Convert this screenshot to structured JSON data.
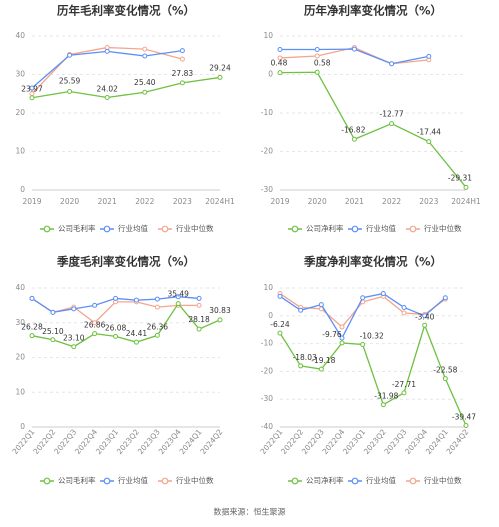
{
  "source_text": "数据来源：恒生聚源",
  "colors": {
    "company": "#6ec141",
    "industry_avg": "#5b8ff9",
    "industry_median": "#f4a58c"
  },
  "chart_data": [
    {
      "type": "line",
      "title": "历年毛利率变化情况（%）",
      "categories": [
        "2019",
        "2020",
        "2021",
        "2022",
        "2023",
        "2024H1"
      ],
      "ylim": [
        0,
        40
      ],
      "yticks": [
        0,
        10,
        20,
        30,
        40
      ],
      "grid": true,
      "legend_position": "bottom",
      "series": [
        {
          "name": "公司毛利率",
          "key": "company",
          "values": [
            23.97,
            25.59,
            24.02,
            25.4,
            27.83,
            29.24
          ],
          "labels": [
            "23.97",
            "25.59",
            "24.02",
            "25.40",
            "27.83",
            "29.24"
          ]
        },
        {
          "name": "行业均值",
          "key": "industry_avg",
          "values": [
            26.5,
            35.0,
            36.0,
            34.8,
            36.2,
            null
          ]
        },
        {
          "name": "行业中位数",
          "key": "industry_median",
          "values": [
            25.0,
            35.2,
            37.0,
            36.6,
            34.0,
            null
          ]
        }
      ]
    },
    {
      "type": "line",
      "title": "历年净利率变化情况（%）",
      "categories": [
        "2019",
        "2020",
        "2021",
        "2022",
        "2023",
        "2024H1"
      ],
      "ylim": [
        -30,
        10
      ],
      "yticks": [
        -30,
        -20,
        -10,
        0,
        10
      ],
      "grid": true,
      "legend_position": "bottom",
      "series": [
        {
          "name": "公司净利率",
          "key": "company",
          "values": [
            0.48,
            0.58,
            -16.82,
            -12.77,
            -17.44,
            -29.31
          ],
          "labels": [
            "0.48",
            "0.58",
            "-16.82",
            "-12.77",
            "-17.44",
            "-29.31"
          ]
        },
        {
          "name": "行业均值",
          "key": "industry_avg",
          "values": [
            6.5,
            6.5,
            6.6,
            2.8,
            4.7,
            null
          ]
        },
        {
          "name": "行业中位数",
          "key": "industry_median",
          "values": [
            4.3,
            4.8,
            7.0,
            2.8,
            3.8,
            null
          ]
        }
      ]
    },
    {
      "type": "line",
      "title": "季度毛利率变化情况（%）",
      "categories": [
        "2022Q1",
        "2022Q2",
        "2022Q3",
        "2022Q4",
        "2023Q1",
        "2023Q2",
        "2023Q3",
        "2023Q4",
        "2024Q1",
        "2024Q2"
      ],
      "ylim": [
        0,
        40
      ],
      "yticks": [
        0,
        10,
        20,
        30,
        40
      ],
      "grid": true,
      "legend_position": "bottom",
      "series": [
        {
          "name": "公司毛利率",
          "key": "company",
          "values": [
            26.28,
            25.1,
            23.1,
            26.86,
            26.08,
            24.41,
            26.36,
            35.49,
            28.18,
            30.83
          ],
          "labels": [
            "26.28",
            "25.10",
            "23.10",
            "26.86",
            "26.08",
            "24.41",
            "26.36",
            "35.49",
            "28.18",
            "30.83"
          ]
        },
        {
          "name": "行业均值",
          "key": "industry_avg",
          "values": [
            37.0,
            33.0,
            34.0,
            35.0,
            37.0,
            36.5,
            36.8,
            37.5,
            37.0,
            null
          ]
        },
        {
          "name": "行业中位数",
          "key": "industry_median",
          "values": [
            37.0,
            33.0,
            34.5,
            30.0,
            36.0,
            36.0,
            34.5,
            35.0,
            35.0,
            null
          ]
        }
      ]
    },
    {
      "type": "line",
      "title": "季度净利率变化情况（%）",
      "categories": [
        "2022Q1",
        "2022Q2",
        "2022Q3",
        "2022Q4",
        "2023Q1",
        "2023Q2",
        "2023Q3",
        "2023Q4",
        "2024Q1",
        "2024Q2"
      ],
      "ylim": [
        -40,
        10
      ],
      "yticks": [
        -40,
        -30,
        -20,
        -10,
        0,
        10
      ],
      "grid": true,
      "legend_position": "bottom",
      "series": [
        {
          "name": "公司净利率",
          "key": "company",
          "values": [
            -6.24,
            -18.03,
            -19.18,
            -9.76,
            -10.32,
            -31.98,
            -27.71,
            -3.4,
            -22.58,
            -39.47
          ],
          "labels": [
            "-6.24",
            "-18.03",
            "-19.18",
            "-9.76",
            "-10.32",
            "-31.98",
            "-27.71",
            "-3.40",
            "-22.58",
            "-39.47"
          ]
        },
        {
          "name": "行业均值",
          "key": "industry_avg",
          "values": [
            7.0,
            2.0,
            4.0,
            -8.0,
            6.5,
            8.0,
            3.0,
            0.0,
            6.5,
            null
          ]
        },
        {
          "name": "行业中位数",
          "key": "industry_median",
          "values": [
            8.0,
            3.0,
            2.5,
            -4.0,
            5.0,
            7.0,
            1.0,
            0.5,
            6.0,
            null
          ]
        }
      ]
    }
  ]
}
